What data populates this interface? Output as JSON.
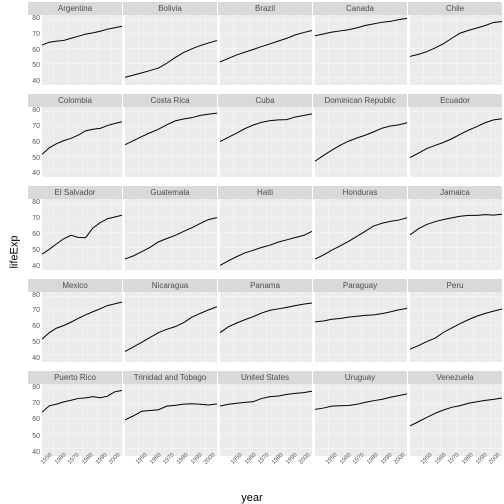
{
  "xlabel": "year",
  "ylabel": "lifeExp",
  "type": "line-facet",
  "layout": {
    "rows": 5,
    "cols": 5,
    "aspect": 1
  },
  "colors": {
    "panel_bg": "#ebebeb",
    "strip_bg": "#d9d9d9",
    "grid_major": "#ffffff",
    "line": "#000000",
    "text": "#4d4d4d",
    "axis_text": "#595959"
  },
  "fonts": {
    "strip_size": 8,
    "tick_size": 7,
    "label_size": 11,
    "line_width": 1
  },
  "y": {
    "lim": [
      35,
      83
    ],
    "ticks": [
      40,
      50,
      60,
      70,
      80
    ]
  },
  "x": {
    "lim": [
      1952,
      2007
    ],
    "ticks": [
      1950,
      1960,
      1970,
      1980,
      1990,
      2000
    ],
    "tick_labels": [
      "1950",
      "1960",
      "1970",
      "1980",
      "1990",
      "2000"
    ],
    "values": [
      1952,
      1957,
      1962,
      1967,
      1972,
      1977,
      1982,
      1987,
      1992,
      1997,
      2002,
      2007
    ]
  },
  "panels": [
    {
      "name": "Argentina",
      "y": [
        62.5,
        64.4,
        65.1,
        65.6,
        67.1,
        68.5,
        69.9,
        70.8,
        71.9,
        73.3,
        74.3,
        75.3
      ]
    },
    {
      "name": "Bolivia",
      "y": [
        40.4,
        41.9,
        43.4,
        45.0,
        46.7,
        50.0,
        53.9,
        57.3,
        59.9,
        62.1,
        63.9,
        65.6
      ]
    },
    {
      "name": "Brazil",
      "y": [
        50.9,
        53.3,
        55.7,
        57.6,
        59.5,
        61.5,
        63.3,
        65.2,
        67.1,
        69.4,
        71.0,
        72.4
      ]
    },
    {
      "name": "Canada",
      "y": [
        68.8,
        70.0,
        71.3,
        72.1,
        72.9,
        74.2,
        75.8,
        76.9,
        78.0,
        78.6,
        79.8,
        80.7
      ]
    },
    {
      "name": "Chile",
      "y": [
        54.7,
        56.1,
        57.9,
        60.5,
        63.4,
        67.1,
        70.6,
        72.5,
        74.1,
        75.8,
        77.9,
        78.6
      ]
    },
    {
      "name": "Colombia",
      "y": [
        50.6,
        55.1,
        57.9,
        60.0,
        61.6,
        63.8,
        66.7,
        67.8,
        68.4,
        70.3,
        71.7,
        72.9
      ]
    },
    {
      "name": "Costa Rica",
      "y": [
        57.2,
        60.0,
        62.8,
        65.4,
        67.8,
        70.8,
        73.5,
        74.8,
        75.7,
        77.3,
        78.1,
        78.8
      ]
    },
    {
      "name": "Cuba",
      "y": [
        59.4,
        62.3,
        65.2,
        68.3,
        70.7,
        72.6,
        73.7,
        74.2,
        74.4,
        76.2,
        77.2,
        78.3
      ]
    },
    {
      "name": "Dominican Republic",
      "y": [
        45.9,
        49.8,
        53.5,
        56.8,
        59.6,
        61.8,
        63.7,
        66.0,
        68.5,
        70.0,
        70.8,
        72.2
      ]
    },
    {
      "name": "Ecuador",
      "y": [
        48.4,
        51.4,
        54.6,
        56.7,
        58.8,
        61.3,
        64.3,
        67.2,
        69.6,
        72.3,
        74.2,
        75.0
      ]
    },
    {
      "name": "El Salvador",
      "y": [
        45.3,
        48.6,
        52.3,
        55.9,
        58.2,
        56.7,
        56.6,
        63.2,
        66.8,
        69.5,
        70.7,
        71.9
      ]
    },
    {
      "name": "Guatemala",
      "y": [
        42.0,
        44.1,
        47.0,
        50.0,
        53.7,
        56.0,
        58.1,
        60.8,
        63.4,
        66.3,
        69.0,
        70.3
      ]
    },
    {
      "name": "Haiti",
      "y": [
        37.6,
        40.7,
        43.6,
        46.2,
        48.0,
        49.9,
        51.5,
        53.6,
        55.1,
        56.7,
        58.1,
        60.9
      ]
    },
    {
      "name": "Honduras",
      "y": [
        41.9,
        44.7,
        48.0,
        50.9,
        54.0,
        57.4,
        60.9,
        64.5,
        66.4,
        67.7,
        68.6,
        70.2
      ]
    },
    {
      "name": "Jamaica",
      "y": [
        58.5,
        62.6,
        65.6,
        67.5,
        69.0,
        70.1,
        71.2,
        71.8,
        71.8,
        72.3,
        72.0,
        72.6
      ]
    },
    {
      "name": "Mexico",
      "y": [
        50.8,
        55.2,
        58.3,
        60.1,
        62.4,
        65.0,
        67.4,
        69.5,
        71.5,
        73.7,
        74.9,
        76.2
      ]
    },
    {
      "name": "Nicaragua",
      "y": [
        42.3,
        45.4,
        48.6,
        51.9,
        55.2,
        57.5,
        59.3,
        62.0,
        65.8,
        68.4,
        70.8,
        72.9
      ]
    },
    {
      "name": "Panama",
      "y": [
        55.2,
        59.2,
        61.8,
        64.1,
        66.2,
        68.7,
        70.5,
        71.5,
        72.5,
        73.7,
        74.7,
        75.5
      ]
    },
    {
      "name": "Paraguay",
      "y": [
        62.6,
        63.2,
        64.4,
        64.9,
        65.8,
        66.4,
        67.0,
        67.4,
        68.2,
        69.4,
        70.8,
        71.8
      ]
    },
    {
      "name": "Peru",
      "y": [
        43.9,
        46.3,
        49.1,
        51.4,
        55.4,
        58.4,
        61.4,
        64.1,
        66.5,
        68.4,
        69.9,
        71.4
      ]
    },
    {
      "name": "Puerto Rico",
      "y": [
        64.3,
        68.5,
        69.6,
        71.1,
        72.2,
        73.4,
        73.8,
        74.6,
        73.9,
        74.9,
        77.8,
        78.7
      ]
    },
    {
      "name": "Trinidad and Tobago",
      "y": [
        59.1,
        61.8,
        64.9,
        65.4,
        65.9,
        68.3,
        68.8,
        69.6,
        69.9,
        69.5,
        69.0,
        69.8
      ]
    },
    {
      "name": "United States",
      "y": [
        68.4,
        69.5,
        70.2,
        70.8,
        71.3,
        73.4,
        74.6,
        75.0,
        76.1,
        76.8,
        77.3,
        78.2
      ]
    },
    {
      "name": "Uruguay",
      "y": [
        66.1,
        67.0,
        68.3,
        68.5,
        68.7,
        69.5,
        70.8,
        71.9,
        72.8,
        74.2,
        75.3,
        76.4
      ]
    },
    {
      "name": "Venezuela",
      "y": [
        55.1,
        57.9,
        60.8,
        63.5,
        65.7,
        67.5,
        68.6,
        70.2,
        71.2,
        72.1,
        72.8,
        73.7
      ]
    }
  ]
}
